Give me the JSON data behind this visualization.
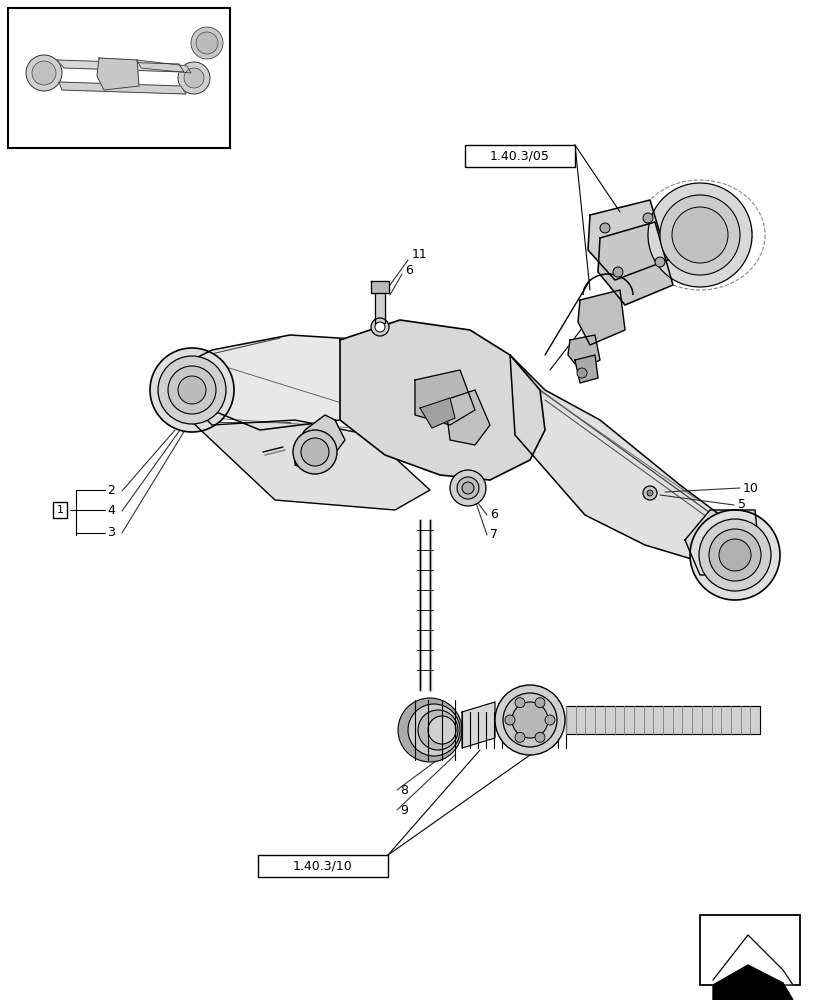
{
  "background_color": "#ffffff",
  "fig_width": 8.16,
  "fig_height": 10.0,
  "dpi": 100,
  "label_ref_top": "1.40.3/05",
  "label_ref_bottom": "1.40.3/10",
  "color_main": "#000000",
  "color_lt": "#cccccc",
  "color_md": "#aaaaaa",
  "color_dk": "#666666"
}
